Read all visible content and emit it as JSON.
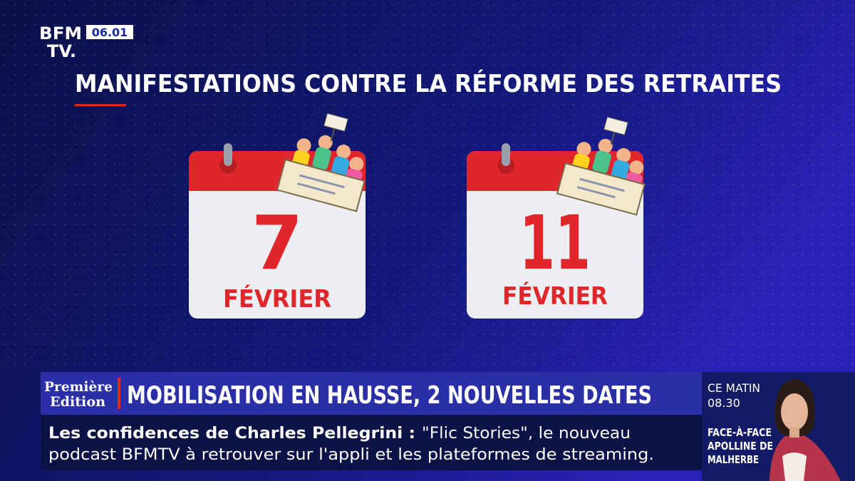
{
  "logo": {
    "line1": "BFM",
    "line2": "TV.",
    "time": "06.01"
  },
  "title": "MANIFESTATIONS CONTRE LA RÉFORME DES RETRAITES",
  "calendars": [
    {
      "day": "7",
      "month": "FÉVRIER"
    },
    {
      "day": "11",
      "month": "FÉVRIER"
    }
  ],
  "banner": {
    "show_line1": "Première",
    "show_line2": "Edition",
    "headline": "MOBILISATION EN HAUSSE, 2 NOUVELLES DATES"
  },
  "ticker": {
    "lead": "Les confidences de Charles Pellegrini :",
    "line1": "\"Flic Stories\", le nouveau",
    "line2": "podcast BFMTV à retrouver sur l'appli et les plateformes de streaming."
  },
  "sidebar": {
    "label": "CE MATIN",
    "time": "08.30",
    "line1": "FACE-À-FACE",
    "line2": "APOLLINE DE",
    "line3": "MALHERBE"
  }
}
